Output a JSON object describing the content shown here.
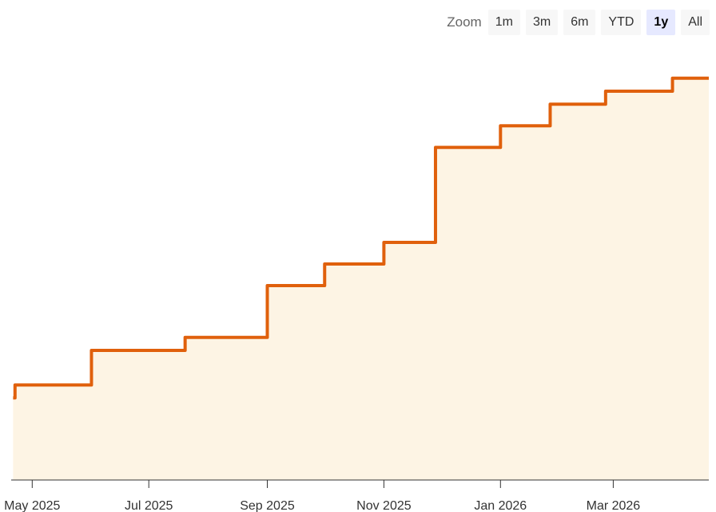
{
  "zoom": {
    "label": "Zoom",
    "buttons": [
      {
        "label": "1m",
        "selected": false
      },
      {
        "label": "3m",
        "selected": false
      },
      {
        "label": "6m",
        "selected": false
      },
      {
        "label": "YTD",
        "selected": false
      },
      {
        "label": "1y",
        "selected": true
      },
      {
        "label": "All",
        "selected": false
      }
    ]
  },
  "chart_data": {
    "type": "area",
    "step": true,
    "title": "",
    "xlabel": "",
    "ylabel": "",
    "grid": false,
    "legend": "none",
    "colors": {
      "line": "#e0600c",
      "fill": "#fdf4e4",
      "axis": "#333333"
    },
    "xlim": [
      "2025-04-20",
      "2026-04-20"
    ],
    "ylim": [
      0,
      100
    ],
    "x_ticks": [
      {
        "date": "2025-05-01",
        "label": "May 2025"
      },
      {
        "date": "2025-07-01",
        "label": "Jul 2025"
      },
      {
        "date": "2025-09-01",
        "label": "Sep 2025"
      },
      {
        "date": "2025-11-01",
        "label": "Nov 2025"
      },
      {
        "date": "2026-01-01",
        "label": "Jan 2026"
      },
      {
        "date": "2026-03-01",
        "label": "Mar 2026"
      }
    ],
    "series": [
      {
        "points": [
          {
            "x": "2025-04-21",
            "y": 19
          },
          {
            "x": "2025-04-22",
            "y": 22
          },
          {
            "x": "2025-06-01",
            "y": 30
          },
          {
            "x": "2025-07-20",
            "y": 33
          },
          {
            "x": "2025-09-01",
            "y": 45
          },
          {
            "x": "2025-10-01",
            "y": 50
          },
          {
            "x": "2025-11-01",
            "y": 55
          },
          {
            "x": "2025-11-28",
            "y": 77
          },
          {
            "x": "2026-01-01",
            "y": 82
          },
          {
            "x": "2026-01-27",
            "y": 87
          },
          {
            "x": "2026-02-25",
            "y": 90
          },
          {
            "x": "2026-04-01",
            "y": 93
          }
        ],
        "end_x": "2026-04-20"
      }
    ]
  }
}
